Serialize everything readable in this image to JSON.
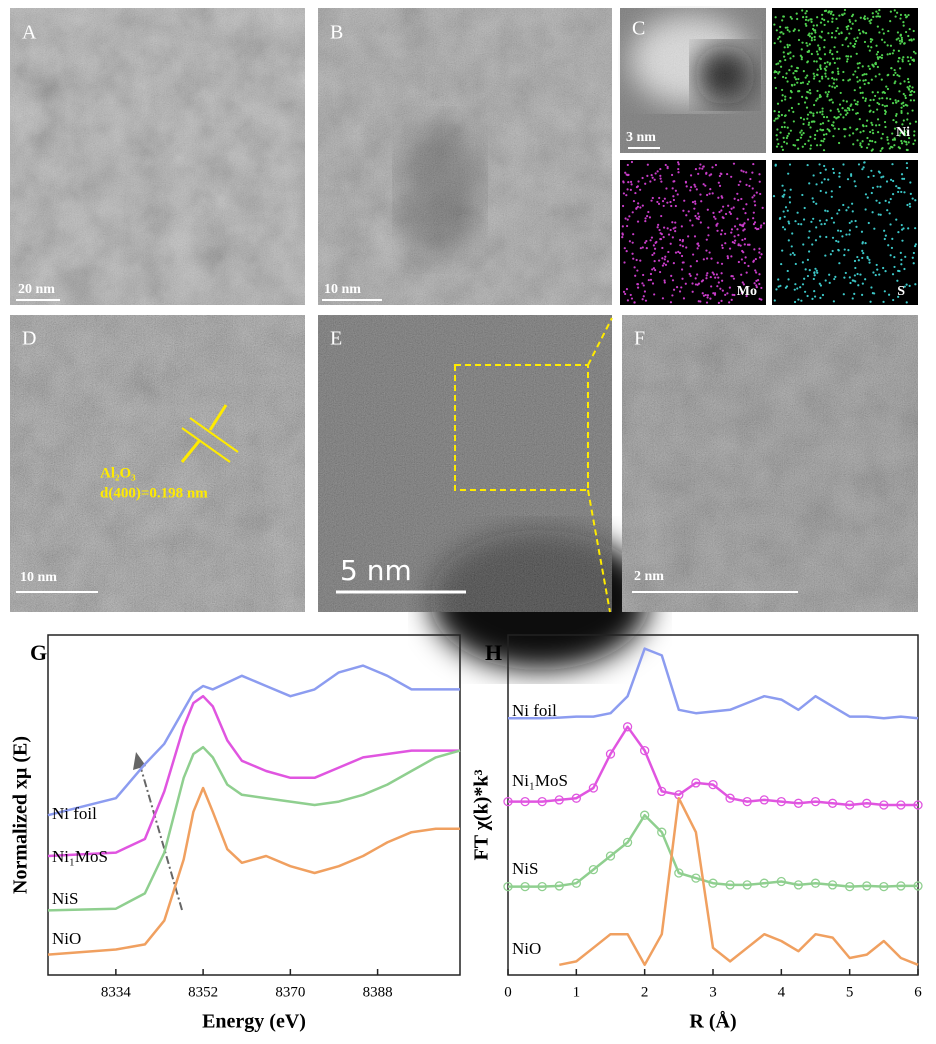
{
  "images": [
    {
      "label": "A",
      "scale_bar": "20 nm"
    },
    {
      "label": "B",
      "scale_bar": "10 nm"
    },
    {
      "label": "C",
      "scale_bar": "3 nm",
      "maps": [
        "Ni",
        "Mo",
        "S"
      ]
    },
    {
      "label": "D",
      "scale_bar": "10 nm",
      "annotations": [
        "Al₂O₃",
        "d(400)=0.198 nm"
      ]
    },
    {
      "label": "E",
      "scale_bar": "5 nm"
    },
    {
      "label": "F",
      "scale_bar": "2 nm"
    }
  ],
  "chart_data": [
    {
      "type": "line",
      "label": "G",
      "xlabel": "Energy (eV)",
      "ylabel": "Normalized xμ (E)",
      "x": [
        8320,
        8334,
        8340,
        8344,
        8348,
        8350,
        8352,
        8354,
        8357,
        8360,
        8365,
        8370,
        8375,
        8380,
        8385,
        8390,
        8395,
        8400,
        8405
      ],
      "xlim": [
        8320,
        8405
      ],
      "xticks": [
        8334,
        8352,
        8370,
        8388
      ],
      "ylim": [
        0,
        10
      ],
      "series": [
        {
          "name": "Ni foil",
          "color": "#8c9cf0",
          "values": [
            4.7,
            5.2,
            6.2,
            6.8,
            7.8,
            8.3,
            8.5,
            8.4,
            8.6,
            8.8,
            8.5,
            8.2,
            8.4,
            8.9,
            9.1,
            8.8,
            8.4,
            8.4,
            8.4
          ]
        },
        {
          "name": "Ni₁MoS",
          "color": "#e055e0",
          "values": [
            3.5,
            3.6,
            4.0,
            5.4,
            7.3,
            8.0,
            8.2,
            7.9,
            6.9,
            6.3,
            6.0,
            5.8,
            5.8,
            6.1,
            6.4,
            6.5,
            6.6,
            6.6,
            6.6
          ]
        },
        {
          "name": "NiS",
          "color": "#8fcf8f",
          "values": [
            1.9,
            1.95,
            2.4,
            3.6,
            5.8,
            6.5,
            6.7,
            6.4,
            5.6,
            5.3,
            5.2,
            5.1,
            5.0,
            5.1,
            5.3,
            5.6,
            6.0,
            6.4,
            6.6
          ]
        },
        {
          "name": "NiO",
          "color": "#f0a060",
          "values": [
            0.6,
            0.75,
            0.9,
            1.6,
            3.4,
            4.8,
            5.5,
            4.8,
            3.7,
            3.3,
            3.5,
            3.2,
            3.0,
            3.2,
            3.5,
            3.9,
            4.2,
            4.3,
            4.3
          ]
        }
      ]
    },
    {
      "type": "line",
      "label": "H",
      "xlabel": "R (Å)",
      "ylabel": "FT χ(k)*k³",
      "x": [
        0,
        0.25,
        0.5,
        0.75,
        1,
        1.25,
        1.5,
        1.75,
        2,
        2.25,
        2.5,
        2.75,
        3,
        3.25,
        3.5,
        3.75,
        4,
        4.25,
        4.5,
        4.75,
        5,
        5.25,
        5.5,
        5.75,
        6
      ],
      "xlim": [
        0,
        6
      ],
      "xticks": [
        0,
        1,
        2,
        3,
        4,
        5,
        6
      ],
      "ylim": [
        0,
        10
      ],
      "series": [
        {
          "name": "Ni foil",
          "color": "#8c9cf0",
          "values": [
            7.55,
            7.55,
            7.55,
            7.57,
            7.6,
            7.6,
            7.7,
            8.2,
            9.6,
            9.4,
            7.8,
            7.7,
            7.75,
            7.8,
            8.0,
            8.2,
            8.1,
            7.8,
            8.2,
            7.9,
            7.6,
            7.6,
            7.55,
            7.6,
            7.55
          ]
        },
        {
          "name": "Ni₁MoS",
          "color": "#e055e0",
          "marker": "circle",
          "values": [
            5.1,
            5.1,
            5.1,
            5.15,
            5.2,
            5.5,
            6.5,
            7.3,
            6.6,
            5.4,
            5.3,
            5.65,
            5.6,
            5.2,
            5.1,
            5.15,
            5.1,
            5.05,
            5.1,
            5.05,
            5.0,
            5.05,
            5.0,
            5.0,
            5.0
          ]
        },
        {
          "name": "NiS",
          "color": "#8fcf8f",
          "marker": "circle",
          "values": [
            2.6,
            2.6,
            2.6,
            2.62,
            2.7,
            3.1,
            3.5,
            3.9,
            4.7,
            4.2,
            3.0,
            2.85,
            2.7,
            2.65,
            2.65,
            2.7,
            2.75,
            2.65,
            2.7,
            2.65,
            2.6,
            2.62,
            2.6,
            2.62,
            2.62
          ]
        },
        {
          "name": "NiO",
          "color": "#f0a060",
          "values": [
            null,
            null,
            null,
            0.3,
            0.4,
            0.8,
            1.2,
            1.2,
            0.3,
            1.2,
            5.2,
            4.2,
            0.8,
            0.4,
            0.8,
            1.2,
            1.0,
            0.7,
            1.2,
            1.1,
            0.5,
            0.6,
            1.0,
            0.5,
            0.3
          ]
        }
      ]
    }
  ]
}
